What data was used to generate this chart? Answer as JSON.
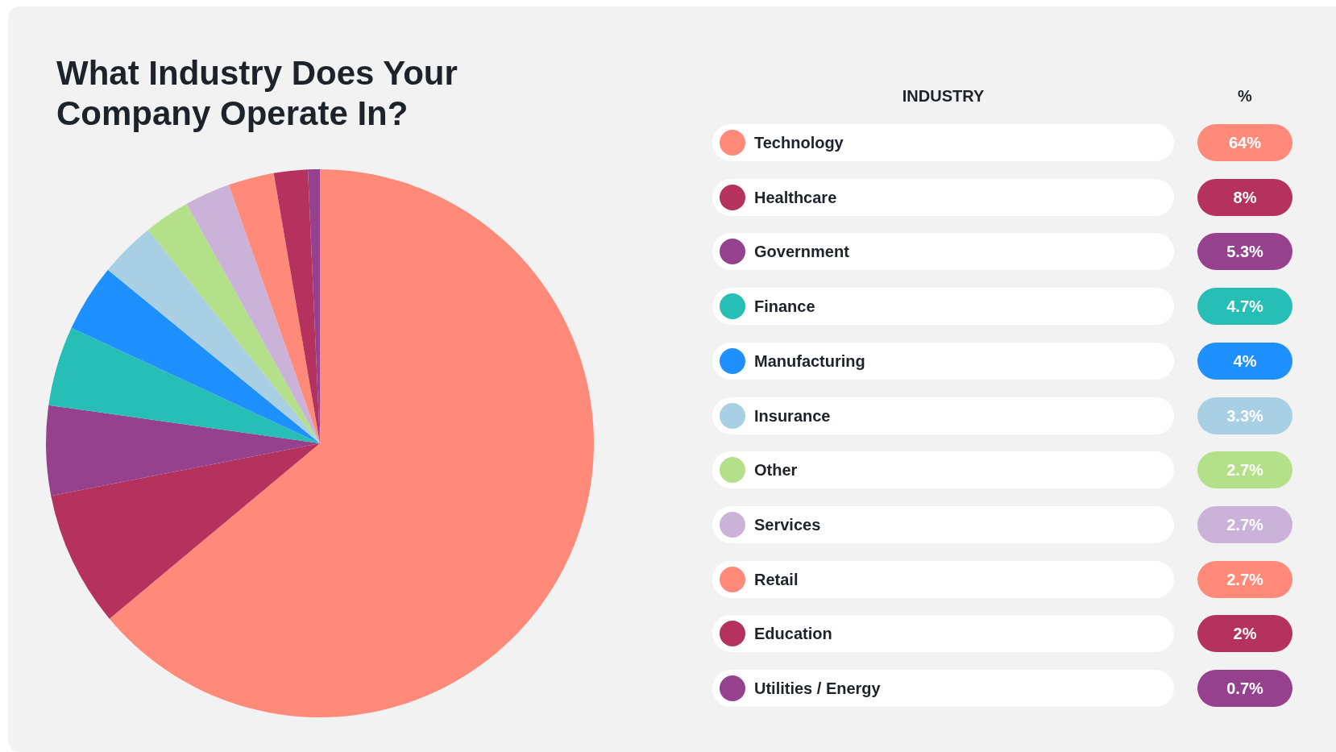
{
  "chart_data": {
    "type": "pie",
    "title": "What Industry Does Your Company Operate In?",
    "legend_title": "INDUSTRY",
    "annotations": [
      "%"
    ],
    "legend": "right",
    "categories": [
      "Technology",
      "Healthcare",
      "Government",
      "Finance",
      "Manufacturing",
      "Insurance",
      "Other",
      "Services",
      "Retail",
      "Education",
      "Utilities / Energy"
    ],
    "values": [
      64,
      8,
      5.3,
      4.7,
      4,
      3.3,
      2.7,
      2.7,
      2.7,
      2,
      0.7
    ],
    "colors": [
      "#ff8a7a",
      "#b5325e",
      "#95418d",
      "#26beb5",
      "#1e90ff",
      "#a8cfe3",
      "#b5e08a",
      "#cbb2d8",
      "#ff8a7a",
      "#b5325e",
      "#95418d"
    ],
    "value_labels": [
      "64%",
      "8%",
      "5.3%",
      "4.7%",
      "4%",
      "3.3%",
      "2.7%",
      "2.7%",
      "2.7%",
      "2%",
      "0.7%"
    ]
  }
}
